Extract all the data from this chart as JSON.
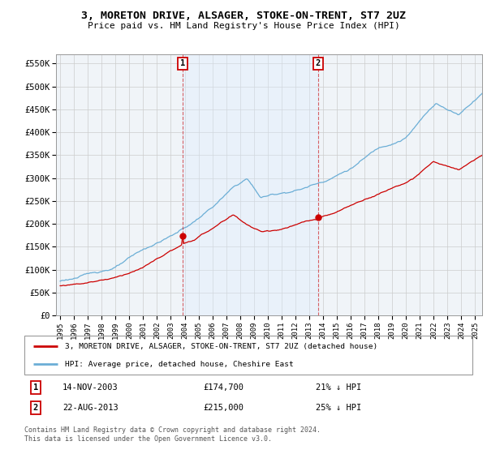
{
  "title": "3, MORETON DRIVE, ALSAGER, STOKE-ON-TRENT, ST7 2UZ",
  "subtitle": "Price paid vs. HM Land Registry's House Price Index (HPI)",
  "ylabel_ticks": [
    "£0",
    "£50K",
    "£100K",
    "£150K",
    "£200K",
    "£250K",
    "£300K",
    "£350K",
    "£400K",
    "£450K",
    "£500K",
    "£550K"
  ],
  "ytick_values": [
    0,
    50000,
    100000,
    150000,
    200000,
    250000,
    300000,
    350000,
    400000,
    450000,
    500000,
    550000
  ],
  "ylim": [
    0,
    570000
  ],
  "xlim_start": 1994.7,
  "xlim_end": 2025.5,
  "xtick_labels": [
    "1995",
    "1996",
    "1997",
    "1998",
    "1999",
    "2000",
    "2001",
    "2002",
    "2003",
    "2004",
    "2005",
    "2006",
    "2007",
    "2008",
    "2009",
    "2010",
    "2011",
    "2012",
    "2013",
    "2014",
    "2015",
    "2016",
    "2017",
    "2018",
    "2019",
    "2020",
    "2021",
    "2022",
    "2023",
    "2024",
    "2025"
  ],
  "hpi_color": "#6baed6",
  "price_color": "#cc0000",
  "shade_color": "#ddeeff",
  "sale1_x": 2003.87,
  "sale1_y": 174700,
  "sale2_x": 2013.64,
  "sale2_y": 215000,
  "legend_house_label": "3, MORETON DRIVE, ALSAGER, STOKE-ON-TRENT, ST7 2UZ (detached house)",
  "legend_hpi_label": "HPI: Average price, detached house, Cheshire East",
  "annotation1_date": "14-NOV-2003",
  "annotation1_price": "£174,700",
  "annotation1_hpi": "21% ↓ HPI",
  "annotation2_date": "22-AUG-2013",
  "annotation2_price": "£215,000",
  "annotation2_hpi": "25% ↓ HPI",
  "footer": "Contains HM Land Registry data © Crown copyright and database right 2024.\nThis data is licensed under the Open Government Licence v3.0.",
  "bg_color": "#f0f4f8",
  "grid_color": "#cccccc"
}
